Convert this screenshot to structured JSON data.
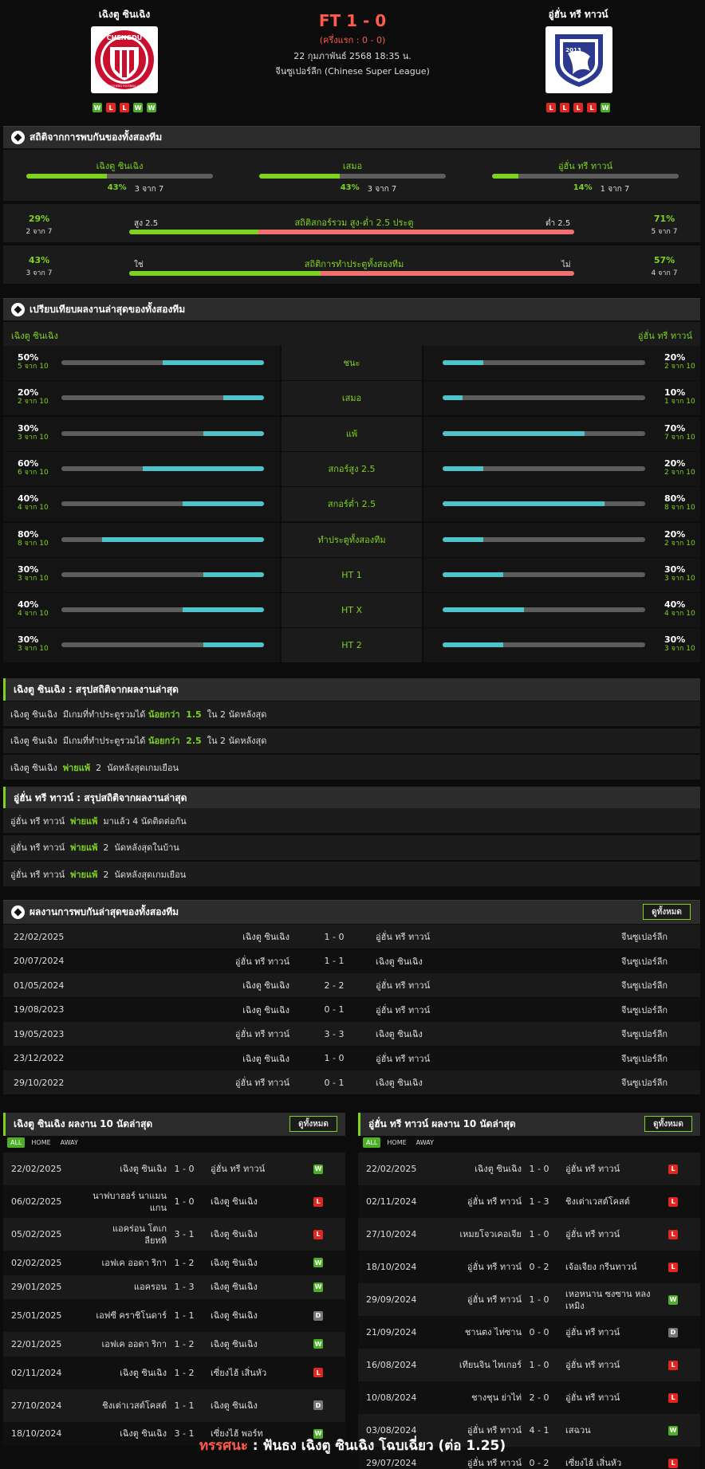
{
  "match": {
    "home_name": "เฉิงตู ซินเฉิง",
    "away_name": "อู่ฮั่น ทรี ทาวน์",
    "score": "FT 1 - 0",
    "half_time": "(ครึ่งแรก : 0 - 0)",
    "date": "22 กุมภาพันธ์ 2568 18:35 น.",
    "league": "จีนซูเปอร์ลีก (Chinese Super League)",
    "home_form": [
      "W",
      "L",
      "L",
      "W",
      "W"
    ],
    "away_form": [
      "L",
      "L",
      "L",
      "L",
      "W"
    ],
    "home_logo_text": "CHENGDU",
    "home_logo_sub": "RONGCHENG FOOTBALL CLUB",
    "away_logo_text": "2013"
  },
  "h2h_stats": {
    "title": "สถิติจากการพบกันของทั้งสองทีม",
    "cols": [
      {
        "label": "เฉิงตู ซินเฉิง",
        "pct": "43%",
        "count": "3 จาก 7",
        "value": 0.43
      },
      {
        "label": "เสมอ",
        "pct": "43%",
        "count": "3 จาก 7",
        "value": 0.43
      },
      {
        "label": "อู่ฮั่น ทรี ทาวน์",
        "pct": "14%",
        "count": "1 จาก 7",
        "value": 0.14
      }
    ],
    "ou": {
      "left_pct": "29%",
      "left_count": "2 จาก 7",
      "left_label": "สูง 2.5",
      "title": "สถิติสกอร์รวม สูง-ต่ำ 2.5 ประตู",
      "right_label": "ต่ำ 2.5",
      "right_pct": "71%",
      "right_count": "5 จาก 7",
      "value": 0.29
    },
    "btts": {
      "left_pct": "43%",
      "left_count": "3 จาก 7",
      "left_label": "ใช่",
      "title": "สถิติการทำประตูทั้งสองทีม",
      "right_label": "ไม่",
      "right_pct": "57%",
      "right_count": "4 จาก 7",
      "value": 0.43
    }
  },
  "compare": {
    "title": "เปรียบเทียบผลงานล่าสุดของทั้งสองทีม",
    "home_label": "เฉิงตู ซินเฉิง",
    "away_label": "อู่ฮั่น ทรี ทาวน์",
    "rows": [
      {
        "label": "ชนะ",
        "hp": "50%",
        "hc": "5 จาก 10",
        "hv": 0.5,
        "ap": "20%",
        "ac": "2 จาก 10",
        "av": 0.2
      },
      {
        "label": "เสมอ",
        "hp": "20%",
        "hc": "2 จาก 10",
        "hv": 0.2,
        "ap": "10%",
        "ac": "1 จาก 10",
        "av": 0.1
      },
      {
        "label": "แพ้",
        "hp": "30%",
        "hc": "3 จาก 10",
        "hv": 0.3,
        "ap": "70%",
        "ac": "7 จาก 10",
        "av": 0.7
      },
      {
        "label": "สกอร์สูง 2.5",
        "hp": "60%",
        "hc": "6 จาก 10",
        "hv": 0.6,
        "ap": "20%",
        "ac": "2 จาก 10",
        "av": 0.2
      },
      {
        "label": "สกอร์ต่ำ 2.5",
        "hp": "40%",
        "hc": "4 จาก 10",
        "hv": 0.4,
        "ap": "80%",
        "ac": "8 จาก 10",
        "av": 0.8
      },
      {
        "label": "ทำประตูทั้งสองทีม",
        "hp": "80%",
        "hc": "8 จาก 10",
        "hv": 0.8,
        "ap": "20%",
        "ac": "2 จาก 10",
        "av": 0.2
      },
      {
        "label": "HT 1",
        "hp": "30%",
        "hc": "3 จาก 10",
        "hv": 0.3,
        "ap": "30%",
        "ac": "3 จาก 10",
        "av": 0.3
      },
      {
        "label": "HT X",
        "hp": "40%",
        "hc": "4 จาก 10",
        "hv": 0.4,
        "ap": "40%",
        "ac": "4 จาก 10",
        "av": 0.4
      },
      {
        "label": "HT 2",
        "hp": "30%",
        "hc": "3 จาก 10",
        "hv": 0.3,
        "ap": "30%",
        "ac": "3 จาก 10",
        "av": 0.3
      }
    ]
  },
  "home_summary": {
    "title": "เฉิงตู ซินเฉิง : สรุปสถิติจากผลงานล่าสุด",
    "lines": [
      {
        "a": "เฉิงตู ซินเฉิง  มีเกมที่ทำประตูรวมได้ ",
        "b": "น้อยกว่า  1.5",
        "c": "  ใน 2 นัดหลังสุด"
      },
      {
        "a": "เฉิงตู ซินเฉิง  มีเกมที่ทำประตูรวมได้ ",
        "b": "น้อยกว่า  2.5",
        "c": "  ใน 2 นัดหลังสุด"
      },
      {
        "a": "เฉิงตู ซินเฉิง  ",
        "b": "พ่ายแพ้",
        "c": "  2  นัดหลังสุดเกมเยือน"
      }
    ]
  },
  "away_summary": {
    "title": "อู่ฮั่น ทรี ทาวน์ : สรุปสถิติจากผลงานล่าสุด",
    "lines": [
      {
        "a": "อู่ฮั่น ทรี ทาวน์  ",
        "b": "พ่ายแพ้",
        "c": "  มาแล้ว 4 นัดติดต่อกัน"
      },
      {
        "a": "อู่ฮั่น ทรี ทาวน์  ",
        "b": "พ่ายแพ้",
        "c": "  2  นัดหลังสุดในบ้าน"
      },
      {
        "a": "อู่ฮั่น ทรี ทาวน์  ",
        "b": "พ่ายแพ้",
        "c": "  2  นัดหลังสุดเกมเยือน"
      }
    ]
  },
  "recent_h2h": {
    "title": "ผลงานการพบกันล่าสุดของทั้งสองทีม",
    "view_all": "ดูทั้งหมด",
    "rows": [
      {
        "date": "22/02/2025",
        "home": "เฉิงตู ซินเฉิง",
        "score": "1 - 0",
        "away": "อู่ฮั่น ทรี ทาวน์",
        "league": "จีนซูเปอร์ลีก"
      },
      {
        "date": "20/07/2024",
        "home": "อู่ฮั่น ทรี ทาวน์",
        "score": "1 - 1",
        "away": "เฉิงตู ซินเฉิง",
        "league": "จีนซูเปอร์ลีก"
      },
      {
        "date": "01/05/2024",
        "home": "เฉิงตู ซินเฉิง",
        "score": "2 - 2",
        "away": "อู่ฮั่น ทรี ทาวน์",
        "league": "จีนซูเปอร์ลีก"
      },
      {
        "date": "19/08/2023",
        "home": "เฉิงตู ซินเฉิง",
        "score": "0 - 1",
        "away": "อู่ฮั่น ทรี ทาวน์",
        "league": "จีนซูเปอร์ลีก"
      },
      {
        "date": "19/05/2023",
        "home": "อู่ฮั่น ทรี ทาวน์",
        "score": "3 - 3",
        "away": "เฉิงตู ซินเฉิง",
        "league": "จีนซูเปอร์ลีก"
      },
      {
        "date": "23/12/2022",
        "home": "เฉิงตู ซินเฉิง",
        "score": "1 - 0",
        "away": "อู่ฮั่น ทรี ทาวน์",
        "league": "จีนซูเปอร์ลีก"
      },
      {
        "date": "29/10/2022",
        "home": "อู่ฮั่น ทรี ทาวน์",
        "score": "0 - 1",
        "away": "เฉิงตู ซินเฉิง",
        "league": "จีนซูเปอร์ลีก"
      }
    ]
  },
  "tabs": [
    "ALL",
    "HOME",
    "AWAY"
  ],
  "home_last10": {
    "title": "เฉิงตู ซินเฉิง ผลงาน 10 นัดล่าสุด",
    "view_all": "ดูทั้งหมด",
    "rows": [
      {
        "date": "22/02/2025",
        "home": "เฉิงตู ซินเฉิง",
        "score": "1 - 0",
        "away": "อู่ฮั่น ทรี ทาวน์",
        "res": "W"
      },
      {
        "date": "06/02/2025",
        "home": "นาฟบาฮอร์ นาแมน แกน",
        "score": "1 - 0",
        "away": "เฉิงตู ซินเฉิง",
        "res": "L"
      },
      {
        "date": "05/02/2025",
        "home": "แอคร่อน โตเกลียททิ",
        "score": "3 - 1",
        "away": "เฉิงตู ซินเฉิง",
        "res": "L"
      },
      {
        "date": "02/02/2025",
        "home": "เอฟเค ออดา ริกา",
        "score": "1 - 2",
        "away": "เฉิงตู ซินเฉิง",
        "res": "W"
      },
      {
        "date": "29/01/2025",
        "home": "แอครอน",
        "score": "1 - 3",
        "away": "เฉิงตู ซินเฉิง",
        "res": "W"
      },
      {
        "date": "25/01/2025",
        "home": "เอฟซี คราชิโนดาร์",
        "score": "1 - 1",
        "away": "เฉิงตู ซินเฉิง",
        "res": "D"
      },
      {
        "date": "22/01/2025",
        "home": "เอฟเค ออดา ริกา",
        "score": "1 - 2",
        "away": "เฉิงตู ซินเฉิง",
        "res": "W"
      },
      {
        "date": "02/11/2024",
        "home": "เฉิงตู ซินเฉิง",
        "score": "1 - 2",
        "away": "เซี่ยงไฮ้ เสิ่นหัว",
        "res": "L"
      },
      {
        "date": "27/10/2024",
        "home": "ชิงเต่าเวสต์โคสต์",
        "score": "1 - 1",
        "away": "เฉิงตู ซินเฉิง",
        "res": "D"
      },
      {
        "date": "18/10/2024",
        "home": "เฉิงตู ซินเฉิง",
        "score": "3 - 1",
        "away": "เซี่ยงไฮ้ พอร์ท",
        "res": "W"
      }
    ]
  },
  "away_last10": {
    "title": "อู่ฮั่น ทรี ทาวน์ ผลงาน 10 นัดล่าสุด",
    "view_all": "ดูทั้งหมด",
    "rows": [
      {
        "date": "22/02/2025",
        "home": "เฉิงตู ซินเฉิง",
        "score": "1 - 0",
        "away": "อู่ฮั่น ทรี ทาวน์",
        "res": "L"
      },
      {
        "date": "02/11/2024",
        "home": "อู่ฮั่น ทรี ทาวน์",
        "score": "1 - 3",
        "away": "ชิงเต่าเวสต์โคสต์",
        "res": "L"
      },
      {
        "date": "27/10/2024",
        "home": "เหมยโจวเคอเจีย",
        "score": "1 - 0",
        "away": "อู่ฮั่น ทรี ทาวน์",
        "res": "L"
      },
      {
        "date": "18/10/2024",
        "home": "อู่ฮั่น ทรี ทาวน์",
        "score": "0 - 2",
        "away": "เจ้อเจียง กรีนทาวน์",
        "res": "L"
      },
      {
        "date": "29/09/2024",
        "home": "อู่ฮั่น ทรี ทาวน์",
        "score": "1 - 0",
        "away": "เหอหนาน ซงซาน หลงเหมิง",
        "res": "W"
      },
      {
        "date": "21/09/2024",
        "home": "ชานตง ไท่ซาน",
        "score": "0 - 0",
        "away": "อู่ฮั่น ทรี ทาวน์",
        "res": "D"
      },
      {
        "date": "16/08/2024",
        "home": "เทียนจิน ไทเกอร์",
        "score": "1 - 0",
        "away": "อู่ฮั่น ทรี ทาวน์",
        "res": "L"
      },
      {
        "date": "10/08/2024",
        "home": "ชางชุน ย่าไท่",
        "score": "2 - 0",
        "away": "อู่ฮั่น ทรี ทาวน์",
        "res": "L"
      },
      {
        "date": "03/08/2024",
        "home": "อู่ฮั่น ทรี ทาวน์",
        "score": "4 - 1",
        "away": "เสฉวน",
        "res": "W"
      },
      {
        "date": "29/07/2024",
        "home": "อู่ฮั่น ทรี ทาวน์",
        "score": "0 - 2",
        "away": "เซี่ยงไฮ้ เสิ่นหัว",
        "res": "L"
      }
    ]
  },
  "verdict": {
    "label": "ทรรศนะ",
    "sep": " : ",
    "text": "ฟันธง เฉิงตู ซินเฉิง โฉบเฉี่ยว (ต่อ 1.25)"
  },
  "colors": {
    "accent": "#7ed321",
    "teal": "#4ec3c9",
    "red_bar": "#f07070",
    "score": "#ff5a4a"
  }
}
